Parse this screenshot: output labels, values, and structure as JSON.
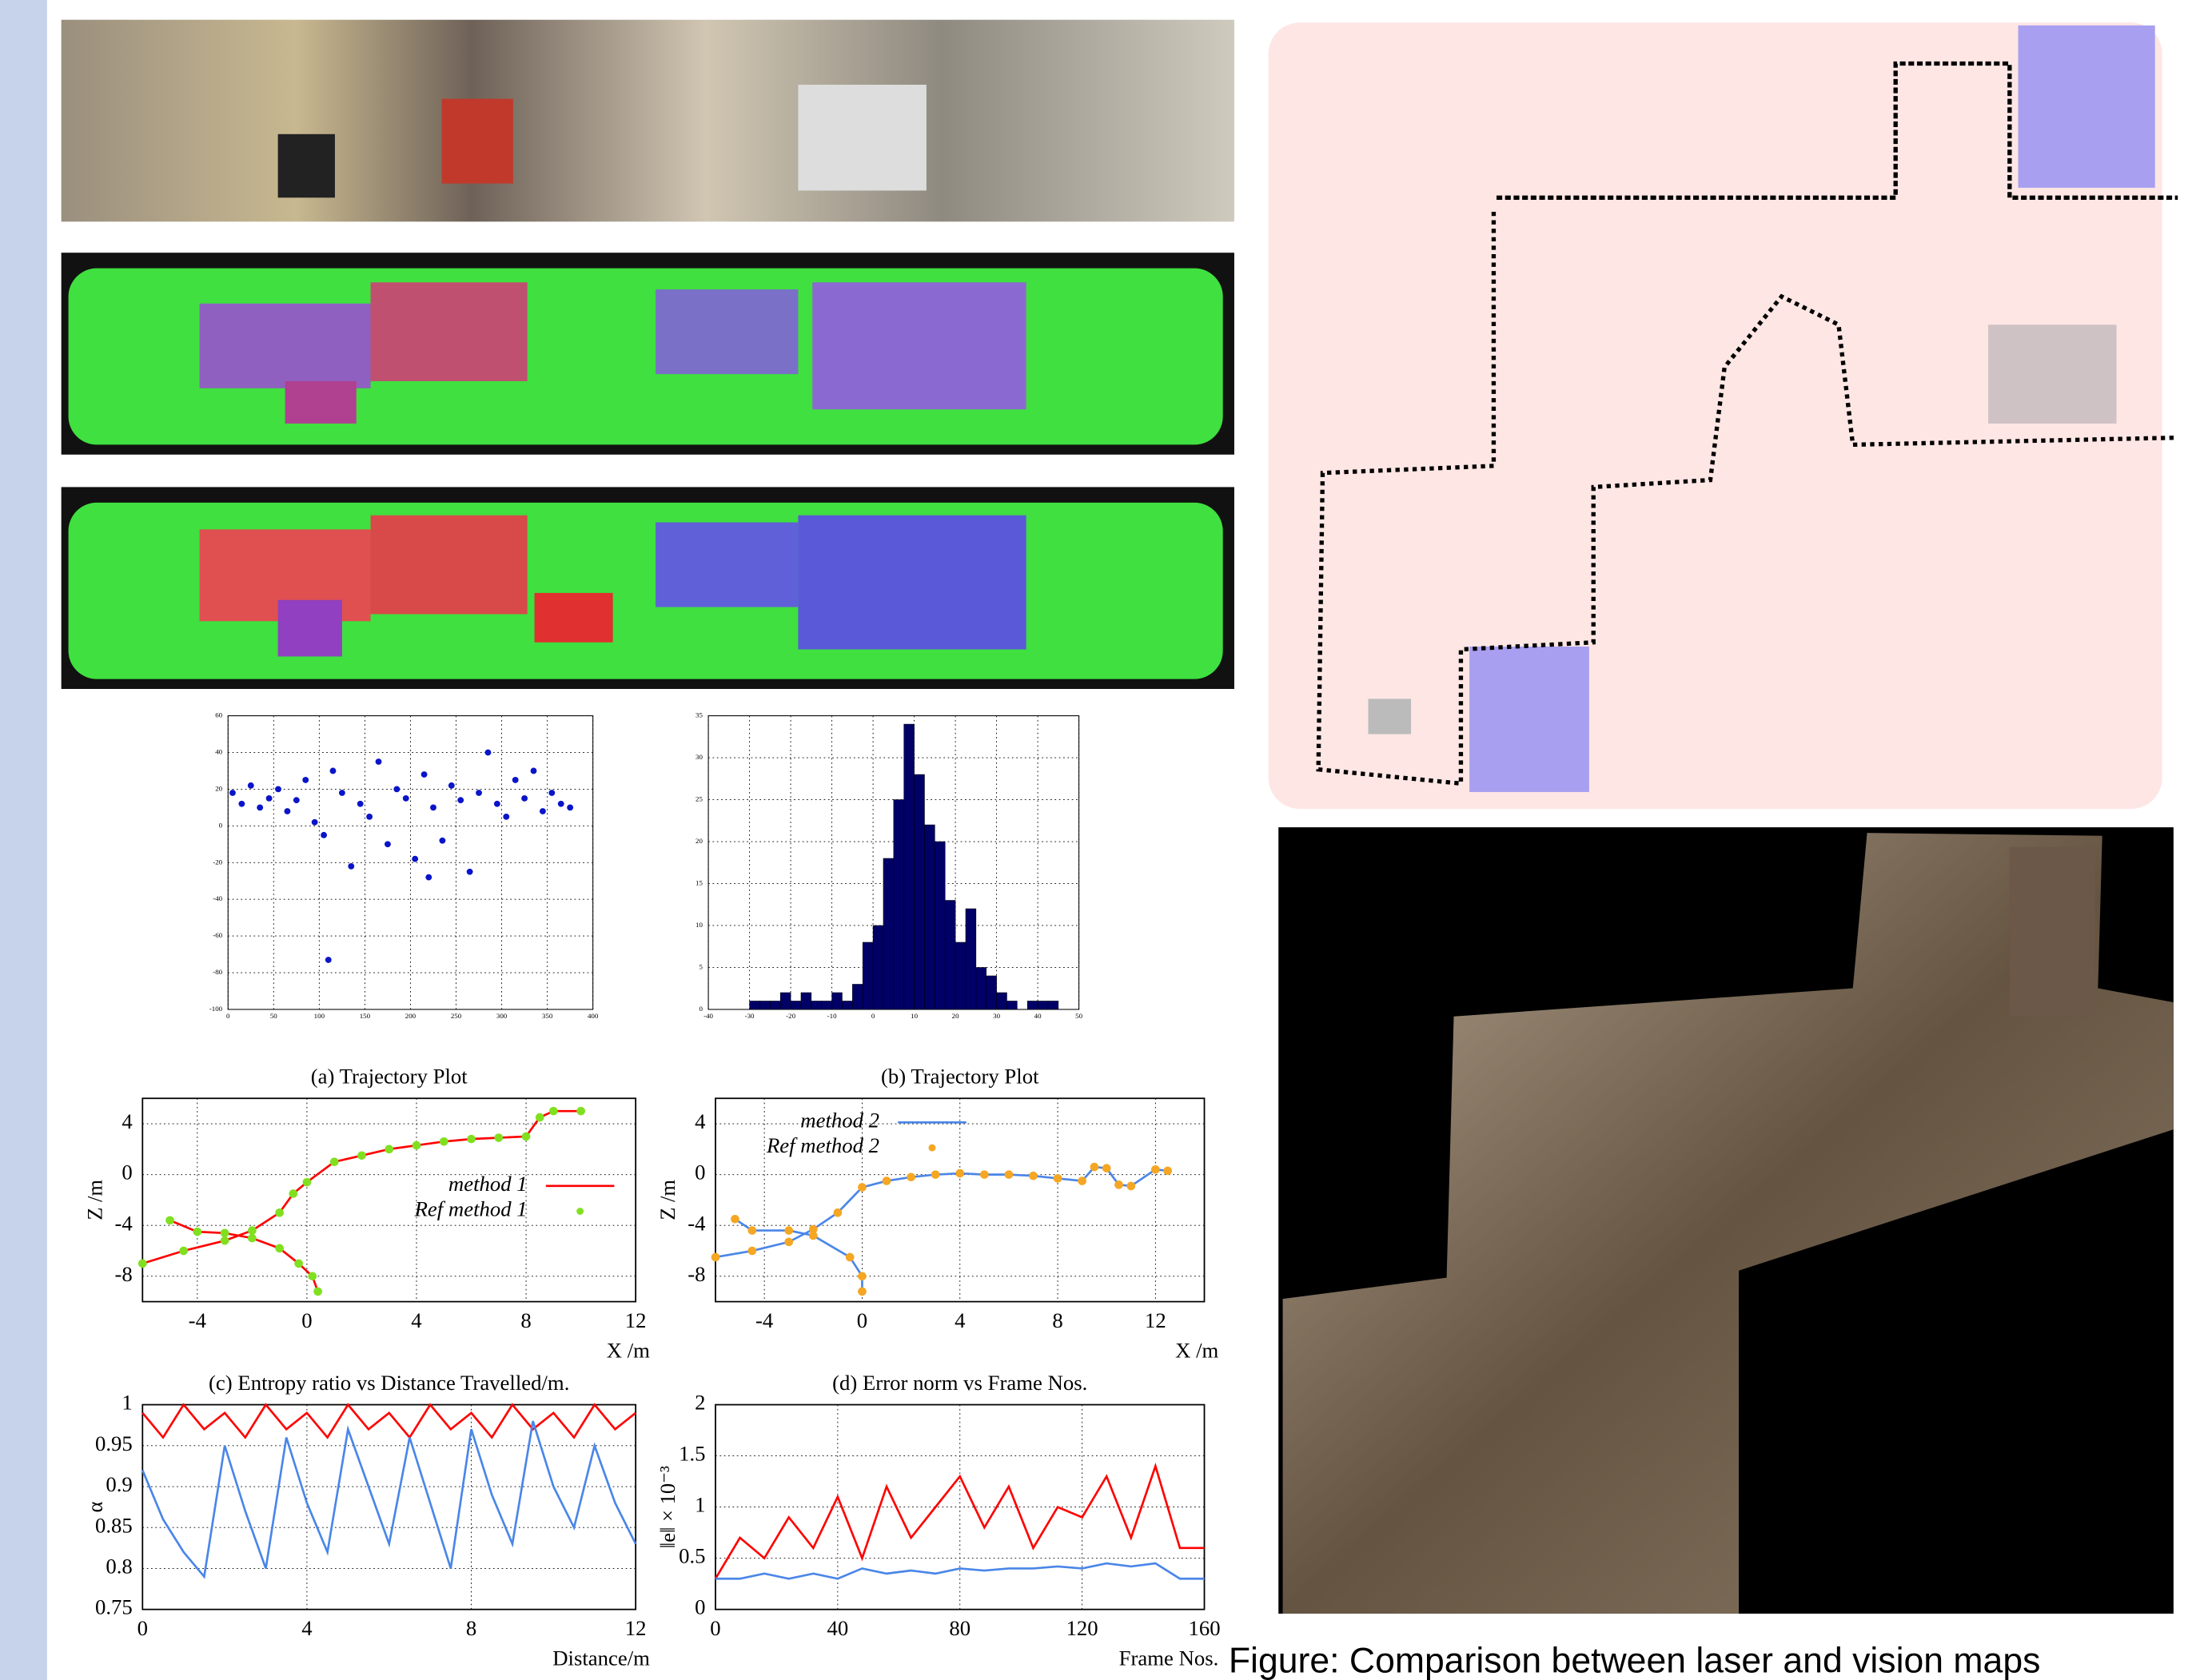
{
  "caption": "Figure: Comparison between laser and vision maps",
  "chart_data": [
    {
      "type": "scatter",
      "x": [
        5,
        15,
        25,
        35,
        45,
        55,
        65,
        75,
        85,
        95,
        105,
        115,
        125,
        135,
        145,
        155,
        165,
        175,
        185,
        195,
        205,
        215,
        225,
        235,
        245,
        255,
        265,
        275,
        285,
        295,
        305,
        315,
        325,
        335,
        345,
        355,
        365,
        375,
        110,
        220
      ],
      "values": [
        18,
        12,
        22,
        10,
        15,
        20,
        8,
        14,
        25,
        2,
        -5,
        30,
        18,
        -22,
        12,
        5,
        35,
        -10,
        20,
        15,
        -18,
        28,
        10,
        -8,
        22,
        14,
        -25,
        18,
        40,
        12,
        5,
        25,
        15,
        30,
        8,
        18,
        12,
        10,
        -73,
        -28
      ],
      "color": "#0a14c8",
      "xlim": [
        0,
        400
      ],
      "ylim": [
        -100,
        60
      ],
      "xticks": [
        0,
        50,
        100,
        150,
        200,
        250,
        300,
        350,
        400
      ],
      "yticks": [
        -100,
        -80,
        -60,
        -40,
        -20,
        0,
        20,
        40,
        60
      ],
      "grid": true
    },
    {
      "type": "histogram",
      "bins": [
        -30,
        -27.5,
        -25,
        -22.5,
        -20,
        -17.5,
        -15,
        -12.5,
        -10,
        -7.5,
        -5,
        -2.5,
        0,
        2.5,
        5,
        7.5,
        10,
        12.5,
        15,
        17.5,
        20,
        22.5,
        25,
        27.5,
        30,
        32.5,
        35,
        37.5,
        40,
        42.5,
        45
      ],
      "counts": [
        1,
        1,
        1,
        2,
        1,
        2,
        1,
        1,
        2,
        1,
        3,
        8,
        10,
        18,
        25,
        34,
        28,
        22,
        20,
        13,
        8,
        12,
        5,
        4,
        2,
        1,
        0,
        1,
        1,
        1
      ],
      "color": "#000066",
      "xlim": [
        -40,
        50
      ],
      "ylim": [
        0,
        35
      ],
      "xticks": [
        -40,
        -30,
        -20,
        -10,
        0,
        10,
        20,
        30,
        40,
        50
      ],
      "yticks": [
        0,
        5,
        10,
        15,
        20,
        25,
        30,
        35
      ],
      "grid": true
    },
    {
      "type": "line",
      "title": "(a) Trajectory Plot",
      "x_label": "X /m",
      "y_label": "Z /m",
      "legend": "right",
      "grid": true,
      "x": [
        0.4,
        0.2,
        -0.3,
        -1,
        -2,
        -3,
        -4,
        -5,
        -5.5,
        -6,
        -4.5,
        -3,
        -2,
        -1,
        -0.5,
        0,
        1,
        2,
        3,
        4,
        5,
        6,
        7,
        8,
        8.5,
        9,
        10
      ],
      "series": [
        {
          "name": "method 1",
          "color": "#ff0000",
          "mode": "lines",
          "values": [
            -9.2,
            -8,
            -7,
            -5.8,
            -5,
            -4.6,
            -4.5,
            -3.6,
            null,
            -7,
            -6,
            -5.2,
            -4.4,
            -3,
            -1.5,
            -0.6,
            1,
            1.5,
            2,
            2.3,
            2.6,
            2.8,
            2.9,
            3,
            4.5,
            5,
            5
          ]
        },
        {
          "name": "Ref method 1",
          "color": "#80e020",
          "mode": "points",
          "values": [
            -9.2,
            -8,
            -7,
            -5.8,
            -5,
            -4.6,
            -4.5,
            -3.6,
            null,
            -7,
            -6,
            -5.2,
            -4.4,
            -3,
            -1.5,
            -0.6,
            1,
            1.5,
            2,
            2.3,
            2.6,
            2.8,
            2.9,
            3,
            4.5,
            5,
            5
          ]
        }
      ],
      "xlim": [
        -6,
        12
      ],
      "ylim": [
        -10,
        6
      ],
      "xticks": [
        -4,
        0,
        4,
        8,
        12
      ],
      "yticks": [
        -8,
        -4,
        0,
        4
      ]
    },
    {
      "type": "line",
      "title": "(b) Trajectory Plot",
      "x_label": "X /m",
      "y_label": "Z /m",
      "legend": "upper left",
      "grid": true,
      "x": [
        0,
        0,
        -0.5,
        -2,
        -3,
        -4.5,
        -5.2,
        -5.5,
        -6,
        -4.5,
        -3,
        -2,
        -1,
        0,
        1,
        2,
        3,
        4,
        5,
        6,
        7,
        8,
        9,
        9.5,
        10,
        10.5,
        11,
        12,
        12.5
      ],
      "series": [
        {
          "name": "method 2",
          "color": "#4a86e8",
          "mode": "lines",
          "values": [
            -9.2,
            -8,
            -6.5,
            -4.8,
            -4.4,
            -4.4,
            -3.5,
            null,
            -6.5,
            -6,
            -5.3,
            -4.3,
            -3,
            -1,
            -0.5,
            -0.2,
            0,
            0.1,
            0,
            0,
            -0.1,
            -0.3,
            -0.5,
            0.6,
            0.5,
            -0.8,
            -0.9,
            0.4,
            0.3
          ]
        },
        {
          "name": "Ref method 2",
          "color": "#f5a623",
          "mode": "points",
          "values": [
            -9.2,
            -8,
            -6.5,
            -4.8,
            -4.4,
            -4.4,
            -3.5,
            null,
            -6.5,
            -6,
            -5.3,
            -4.3,
            -3,
            -1,
            -0.5,
            -0.2,
            0,
            0.1,
            0,
            0,
            -0.1,
            -0.3,
            -0.5,
            0.6,
            0.5,
            -0.8,
            -0.9,
            0.4,
            0.3
          ]
        }
      ],
      "xlim": [
        -6,
        14
      ],
      "ylim": [
        -10,
        6
      ],
      "xticks": [
        -4,
        0,
        4,
        8,
        12
      ],
      "yticks": [
        -8,
        -4,
        0,
        4
      ]
    },
    {
      "type": "line",
      "title": "(c) Entropy ratio vs Distance Travelled/m.",
      "x_label": "Distance/m",
      "y_label": "α",
      "grid": true,
      "x": [
        0,
        0.5,
        1,
        1.5,
        2,
        2.5,
        3,
        3.5,
        4,
        4.5,
        5,
        5.5,
        6,
        6.5,
        7,
        7.5,
        8,
        8.5,
        9,
        9.5,
        10,
        10.5,
        11,
        11.5,
        12
      ],
      "series": [
        {
          "color": "#ff0000",
          "mode": "lines",
          "values": [
            0.99,
            0.96,
            1,
            0.97,
            0.99,
            0.96,
            1,
            0.97,
            0.99,
            0.96,
            1,
            0.97,
            0.99,
            0.96,
            1,
            0.97,
            0.99,
            0.96,
            1,
            0.97,
            0.99,
            0.96,
            1,
            0.97,
            0.99
          ]
        },
        {
          "color": "#4a86e8",
          "mode": "lines",
          "values": [
            0.92,
            0.86,
            0.82,
            0.79,
            0.95,
            0.87,
            0.8,
            0.96,
            0.88,
            0.82,
            0.97,
            0.9,
            0.83,
            0.96,
            0.88,
            0.8,
            0.97,
            0.89,
            0.83,
            0.98,
            0.9,
            0.85,
            0.95,
            0.88,
            0.83
          ]
        }
      ],
      "xlim": [
        0,
        12
      ],
      "ylim": [
        0.75,
        1
      ],
      "xticks": [
        0,
        4,
        8,
        12
      ],
      "yticks": [
        0.75,
        0.8,
        0.85,
        0.9,
        0.95,
        1
      ]
    },
    {
      "type": "line",
      "title": "(d) Error norm vs Frame Nos.",
      "x_label": "Frame Nos.",
      "y_label": "‖e‖ × 10⁻³",
      "grid": true,
      "x": [
        0,
        8,
        16,
        24,
        32,
        40,
        48,
        56,
        64,
        72,
        80,
        88,
        96,
        104,
        112,
        120,
        128,
        136,
        144,
        152,
        160
      ],
      "series": [
        {
          "color": "#ff0000",
          "mode": "lines",
          "values": [
            0.3,
            0.7,
            0.5,
            0.9,
            0.6,
            1.1,
            0.5,
            1.2,
            0.7,
            1.0,
            1.3,
            0.8,
            1.2,
            0.6,
            1.0,
            0.9,
            1.3,
            0.7,
            1.4,
            0.6,
            0.6
          ]
        },
        {
          "color": "#4a86e8",
          "mode": "lines",
          "values": [
            0.3,
            0.3,
            0.35,
            0.3,
            0.35,
            0.3,
            0.4,
            0.35,
            0.38,
            0.35,
            0.4,
            0.38,
            0.4,
            0.4,
            0.42,
            0.4,
            0.45,
            0.42,
            0.45,
            0.3,
            0.3
          ]
        }
      ],
      "xlim": [
        0,
        160
      ],
      "ylim": [
        0,
        2
      ],
      "xticks": [
        0,
        40,
        80,
        120,
        160
      ],
      "yticks": [
        0,
        0.5,
        1,
        1.5,
        2
      ]
    }
  ]
}
